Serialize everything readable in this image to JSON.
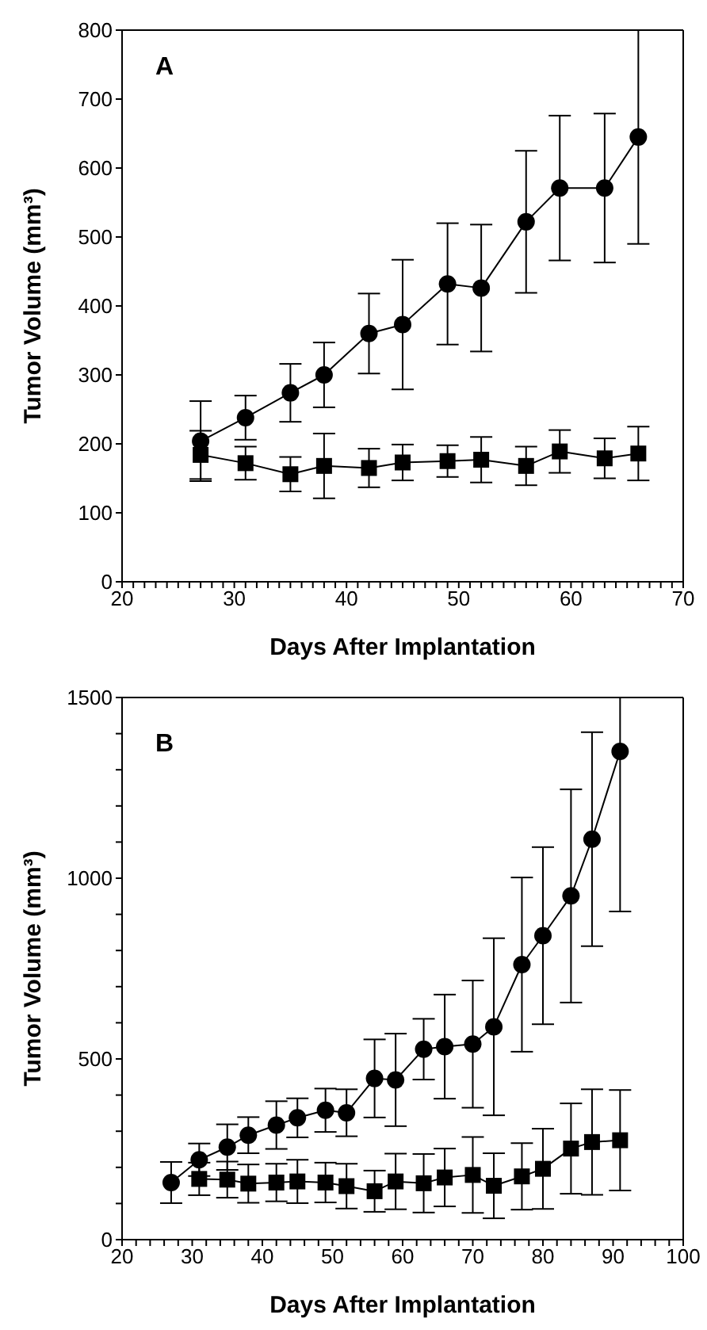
{
  "chart_data": [
    {
      "type": "line",
      "title": "A",
      "xlabel": "Days After Implantation",
      "ylabel": "Tumor Volume (mm³)",
      "xlim": [
        20,
        70
      ],
      "ylim": [
        0,
        800
      ],
      "xticks": [
        20,
        {
          "value": 21,
          "label": null
        },
        {
          "value": 22,
          "label": null
        },
        {
          "value": 23,
          "label": null
        },
        {
          "value": 24,
          "label": null
        },
        {
          "value": 25,
          "label": null
        },
        {
          "value": 26,
          "label": null
        },
        {
          "value": 27,
          "label": null
        },
        {
          "value": 28,
          "label": null
        },
        {
          "value": 29,
          "label": null
        },
        30,
        {
          "value": 31,
          "label": null
        },
        {
          "value": 32,
          "label": null
        },
        {
          "value": 33,
          "label": null
        },
        {
          "value": 34,
          "label": null
        },
        {
          "value": 35,
          "label": null
        },
        {
          "value": 36,
          "label": null
        },
        {
          "value": 37,
          "label": null
        },
        {
          "value": 38,
          "label": null
        },
        {
          "value": 39,
          "label": null
        },
        40,
        {
          "value": 41,
          "label": null
        },
        {
          "value": 42,
          "label": null
        },
        {
          "value": 43,
          "label": null
        },
        {
          "value": 44,
          "label": null
        },
        {
          "value": 45,
          "label": null
        },
        {
          "value": 46,
          "label": null
        },
        {
          "value": 47,
          "label": null
        },
        {
          "value": 48,
          "label": null
        },
        {
          "value": 49,
          "label": null
        },
        50,
        {
          "value": 51,
          "label": null
        },
        {
          "value": 52,
          "label": null
        },
        {
          "value": 53,
          "label": null
        },
        {
          "value": 54,
          "label": null
        },
        {
          "value": 55,
          "label": null
        },
        {
          "value": 56,
          "label": null
        },
        {
          "value": 57,
          "label": null
        },
        {
          "value": 58,
          "label": null
        },
        {
          "value": 59,
          "label": null
        },
        60,
        {
          "value": 61,
          "label": null
        },
        {
          "value": 62,
          "label": null
        },
        {
          "value": 63,
          "label": null
        },
        {
          "value": 64,
          "label": null
        },
        {
          "value": 65,
          "label": null
        },
        {
          "value": 66,
          "label": null
        },
        {
          "value": 67,
          "label": null
        },
        {
          "value": 68,
          "label": null
        },
        {
          "value": 69,
          "label": null
        },
        70
      ],
      "yticks": [
        0,
        100,
        200,
        300,
        400,
        500,
        600,
        700,
        800
      ],
      "line_style": "solid",
      "series": [
        {
          "color": "#000000",
          "marker": "circle",
          "x": [
            27,
            31,
            35,
            38,
            42,
            45,
            49,
            52,
            56,
            59,
            63,
            66
          ],
          "values": [
            204,
            238,
            274,
            300,
            360,
            373,
            432,
            426,
            522,
            571,
            571,
            645
          ],
          "errors": [
            58,
            32,
            42,
            47,
            58,
            94,
            88,
            92,
            103,
            105,
            108,
            [
              490,
              800
            ]
          ]
        },
        {
          "color": "#000000",
          "marker": "square",
          "x": [
            27,
            31,
            35,
            38,
            42,
            45,
            49,
            52,
            56,
            59,
            63,
            66
          ],
          "values": [
            184,
            172,
            156,
            168,
            165,
            173,
            175,
            177,
            168,
            189,
            179,
            186
          ],
          "errors": [
            35,
            24,
            25,
            47,
            28,
            26,
            23,
            33,
            28,
            31,
            29,
            39
          ]
        }
      ]
    },
    {
      "type": "line",
      "title": "B",
      "xlabel": "Days After Implantation",
      "ylabel": "Tumor Volume (mm³)",
      "xlim": [
        20,
        100
      ],
      "ylim": [
        0,
        1500
      ],
      "xticks": [
        20,
        {
          "value": 22,
          "label": null
        },
        {
          "value": 24,
          "label": null
        },
        {
          "value": 26,
          "label": null
        },
        {
          "value": 28,
          "label": null
        },
        30,
        {
          "value": 32,
          "label": null
        },
        {
          "value": 34,
          "label": null
        },
        {
          "value": 36,
          "label": null
        },
        {
          "value": 38,
          "label": null
        },
        40,
        {
          "value": 42,
          "label": null
        },
        {
          "value": 44,
          "label": null
        },
        {
          "value": 46,
          "label": null
        },
        {
          "value": 48,
          "label": null
        },
        50,
        {
          "value": 52,
          "label": null
        },
        {
          "value": 54,
          "label": null
        },
        {
          "value": 56,
          "label": null
        },
        {
          "value": 58,
          "label": null
        },
        60,
        {
          "value": 62,
          "label": null
        },
        {
          "value": 64,
          "label": null
        },
        {
          "value": 66,
          "label": null
        },
        {
          "value": 68,
          "label": null
        },
        70,
        {
          "value": 72,
          "label": null
        },
        {
          "value": 74,
          "label": null
        },
        {
          "value": 76,
          "label": null
        },
        {
          "value": 78,
          "label": null
        },
        80,
        {
          "value": 82,
          "label": null
        },
        {
          "value": 84,
          "label": null
        },
        {
          "value": 86,
          "label": null
        },
        {
          "value": 88,
          "label": null
        },
        90,
        {
          "value": 92,
          "label": null
        },
        {
          "value": 94,
          "label": null
        },
        {
          "value": 96,
          "label": null
        },
        {
          "value": 98,
          "label": null
        },
        100
      ],
      "yticks": [
        0,
        {
          "value": 100,
          "label": null
        },
        {
          "value": 200,
          "label": null
        },
        {
          "value": 300,
          "label": null
        },
        {
          "value": 400,
          "label": null
        },
        500,
        {
          "value": 600,
          "label": null
        },
        {
          "value": 700,
          "label": null
        },
        {
          "value": 800,
          "label": null
        },
        {
          "value": 900,
          "label": null
        },
        1000,
        {
          "value": 1100,
          "label": null
        },
        {
          "value": 1200,
          "label": null
        },
        {
          "value": 1300,
          "label": null
        },
        {
          "value": 1400,
          "label": null
        },
        1500
      ],
      "line_style": "solid",
      "series": [
        {
          "color": "#000000",
          "marker": "circle",
          "x": [
            27,
            31,
            35,
            38,
            42,
            45,
            49,
            52,
            56,
            59,
            63,
            66,
            70,
            73,
            77,
            80,
            84,
            87,
            91
          ],
          "values": [
            158,
            221,
            256,
            289,
            317,
            337,
            358,
            351,
            446,
            442,
            527,
            534,
            541,
            589,
            761,
            841,
            951,
            1108,
            1351
          ],
          "errors": [
            57,
            45,
            63,
            50,
            66,
            54,
            60,
            65,
            108,
            128,
            84,
            144,
            176,
            245,
            241,
            245,
            295,
            296,
            [
              908,
              1500
            ]
          ]
        },
        {
          "color": "#000000",
          "marker": "square",
          "x": [
            31,
            35,
            38,
            42,
            45,
            49,
            52,
            56,
            59,
            63,
            66,
            70,
            73,
            77,
            80,
            84,
            87,
            91
          ],
          "values": [
            168,
            166,
            155,
            158,
            161,
            158,
            148,
            134,
            161,
            156,
            172,
            179,
            149,
            175,
            196,
            252,
            270,
            275
          ],
          "errors": [
            45,
            50,
            53,
            52,
            60,
            55,
            62,
            57,
            77,
            81,
            80,
            105,
            90,
            92,
            111,
            125,
            146,
            139
          ]
        }
      ]
    }
  ]
}
